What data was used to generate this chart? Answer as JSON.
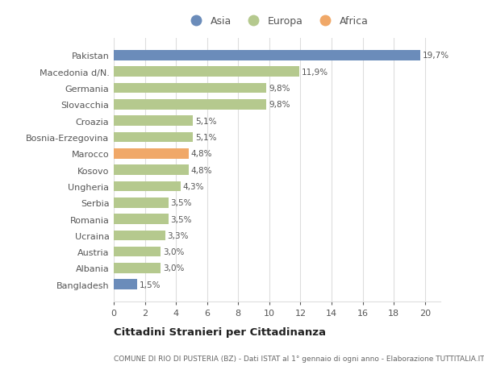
{
  "countries": [
    "Pakistan",
    "Macedonia d/N.",
    "Germania",
    "Slovacchia",
    "Croazia",
    "Bosnia-Erzegovina",
    "Marocco",
    "Kosovo",
    "Ungheria",
    "Serbia",
    "Romania",
    "Ucraina",
    "Austria",
    "Albania",
    "Bangladesh"
  ],
  "values": [
    19.7,
    11.9,
    9.8,
    9.8,
    5.1,
    5.1,
    4.8,
    4.8,
    4.3,
    3.5,
    3.5,
    3.3,
    3.0,
    3.0,
    1.5
  ],
  "labels": [
    "19,7%",
    "11,9%",
    "9,8%",
    "9,8%",
    "5,1%",
    "5,1%",
    "4,8%",
    "4,8%",
    "4,3%",
    "3,5%",
    "3,5%",
    "3,3%",
    "3,0%",
    "3,0%",
    "1,5%"
  ],
  "colors": [
    "#6b8cba",
    "#b5c98e",
    "#b5c98e",
    "#b5c98e",
    "#b5c98e",
    "#b5c98e",
    "#f0a868",
    "#b5c98e",
    "#b5c98e",
    "#b5c98e",
    "#b5c98e",
    "#b5c98e",
    "#b5c98e",
    "#b5c98e",
    "#6b8cba"
  ],
  "legend_labels": [
    "Asia",
    "Europa",
    "Africa"
  ],
  "legend_colors": [
    "#6b8cba",
    "#b5c98e",
    "#f0a868"
  ],
  "title": "Cittadini Stranieri per Cittadinanza",
  "subtitle": "COMUNE DI RIO DI PUSTERIA (BZ) - Dati ISTAT al 1° gennaio di ogni anno - Elaborazione TUTTITALIA.IT",
  "xlim": [
    0,
    21
  ],
  "xticks": [
    0,
    2,
    4,
    6,
    8,
    10,
    12,
    14,
    16,
    18,
    20
  ],
  "bg_color": "#ffffff",
  "grid_color": "#dddddd",
  "bar_height": 0.62
}
